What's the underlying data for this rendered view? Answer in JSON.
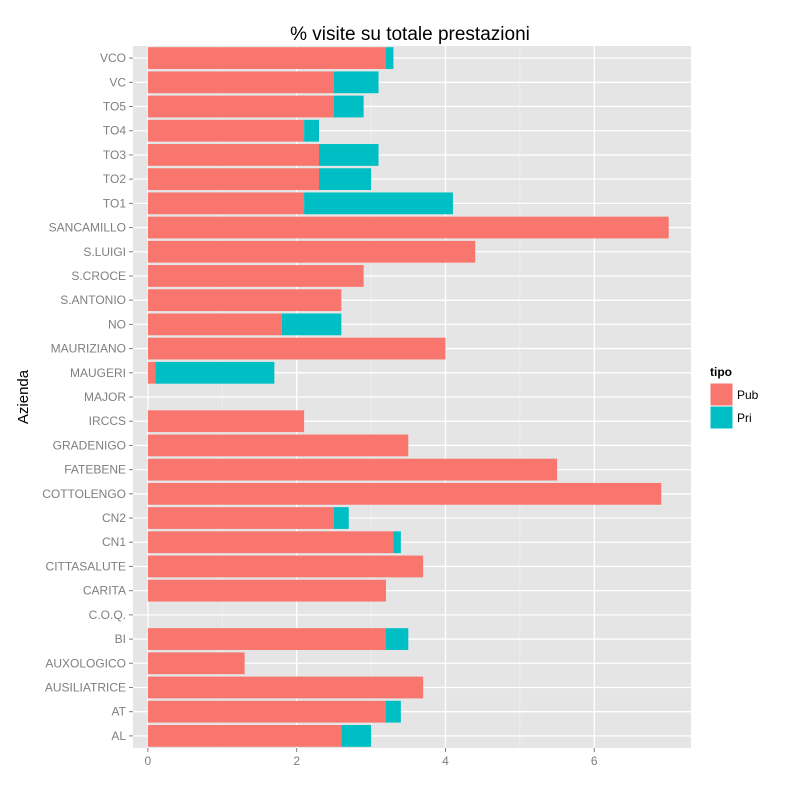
{
  "chart_data": {
    "type": "bar",
    "orientation": "horizontal",
    "stacked": true,
    "title": "% visite su totale prestazioni",
    "ylabel": "Azienda",
    "xlabel": "",
    "xlim": [
      -0.2,
      7.3
    ],
    "xticks": [
      0,
      2,
      4,
      6
    ],
    "grid": true,
    "legend_position": "right",
    "legend_title": "tipo",
    "categories": [
      "VCO",
      "VC",
      "TO5",
      "TO4",
      "TO3",
      "TO2",
      "TO1",
      "SANCAMILLO",
      "S.LUIGI",
      "S.CROCE",
      "S.ANTONIO",
      "NO",
      "MAURIZIANO",
      "MAUGERI",
      "MAJOR",
      "IRCCS",
      "GRADENIGO",
      "FATEBENE",
      "COTTOLENGO",
      "CN2",
      "CN1",
      "CITTASALUTE",
      "CARITA",
      "C.O.Q.",
      "BI",
      "AUXOLOGICO",
      "AUSILIATRICE",
      "AT",
      "AL"
    ],
    "series": [
      {
        "name": "Pub",
        "color": "#F8766D",
        "values": [
          3.2,
          2.5,
          2.5,
          2.1,
          2.3,
          2.3,
          2.1,
          7.0,
          4.4,
          2.9,
          2.6,
          1.8,
          4.0,
          0.1,
          0,
          2.1,
          3.5,
          5.5,
          6.9,
          2.5,
          3.3,
          3.7,
          3.2,
          0,
          3.2,
          1.3,
          3.7,
          3.2,
          2.6
        ]
      },
      {
        "name": "Pri",
        "color": "#00BFC4",
        "values": [
          0.1,
          0.6,
          0.4,
          0.2,
          0.8,
          0.7,
          2.0,
          0,
          0,
          0,
          0,
          0.8,
          0,
          1.6,
          0,
          0,
          0,
          0,
          0,
          0.2,
          0.1,
          0,
          0,
          0,
          0.3,
          0,
          0,
          0.2,
          0.4
        ]
      }
    ]
  }
}
